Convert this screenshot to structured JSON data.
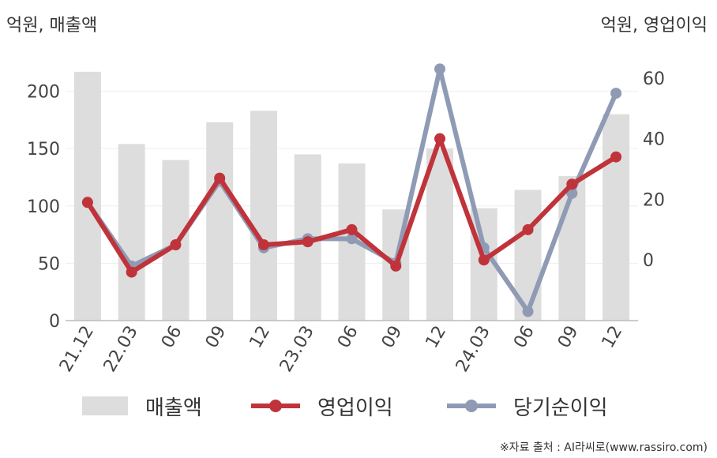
{
  "units": {
    "left": "억원, 매출액",
    "right": "억원, 영업이익"
  },
  "source": "※자료 출처 : AI라씨로(www.rassiro.com)",
  "chart_data": {
    "type": "bar+line",
    "categories": [
      "21.12",
      "22.03",
      "06",
      "09",
      "12",
      "23.03",
      "06",
      "09",
      "12",
      "24.03",
      "06",
      "09",
      "12"
    ],
    "left_axis": {
      "ylim": [
        0,
        230
      ],
      "ticks": [
        0,
        50,
        100,
        150,
        200
      ]
    },
    "right_axis": {
      "ylim": [
        -20,
        67
      ],
      "ticks": [
        0,
        20,
        40,
        60
      ]
    },
    "series": [
      {
        "name": "매출액",
        "type": "bar",
        "axis": "left",
        "color": "#dddddd",
        "values": [
          217,
          154,
          140,
          173,
          183,
          145,
          137,
          97,
          150,
          98,
          114,
          126,
          180
        ]
      },
      {
        "name": "영업이익",
        "type": "line",
        "axis": "right",
        "color": "#c0333a",
        "values": [
          19,
          -4,
          5,
          27,
          5,
          6,
          10,
          -2,
          40,
          0,
          10,
          25,
          34
        ]
      },
      {
        "name": "당기순이익",
        "type": "line",
        "axis": "right",
        "color": "#8f9bb5",
        "values": [
          19,
          -2,
          5,
          26,
          4,
          7,
          7,
          -1,
          63,
          4,
          -17,
          22,
          55
        ]
      }
    ]
  }
}
